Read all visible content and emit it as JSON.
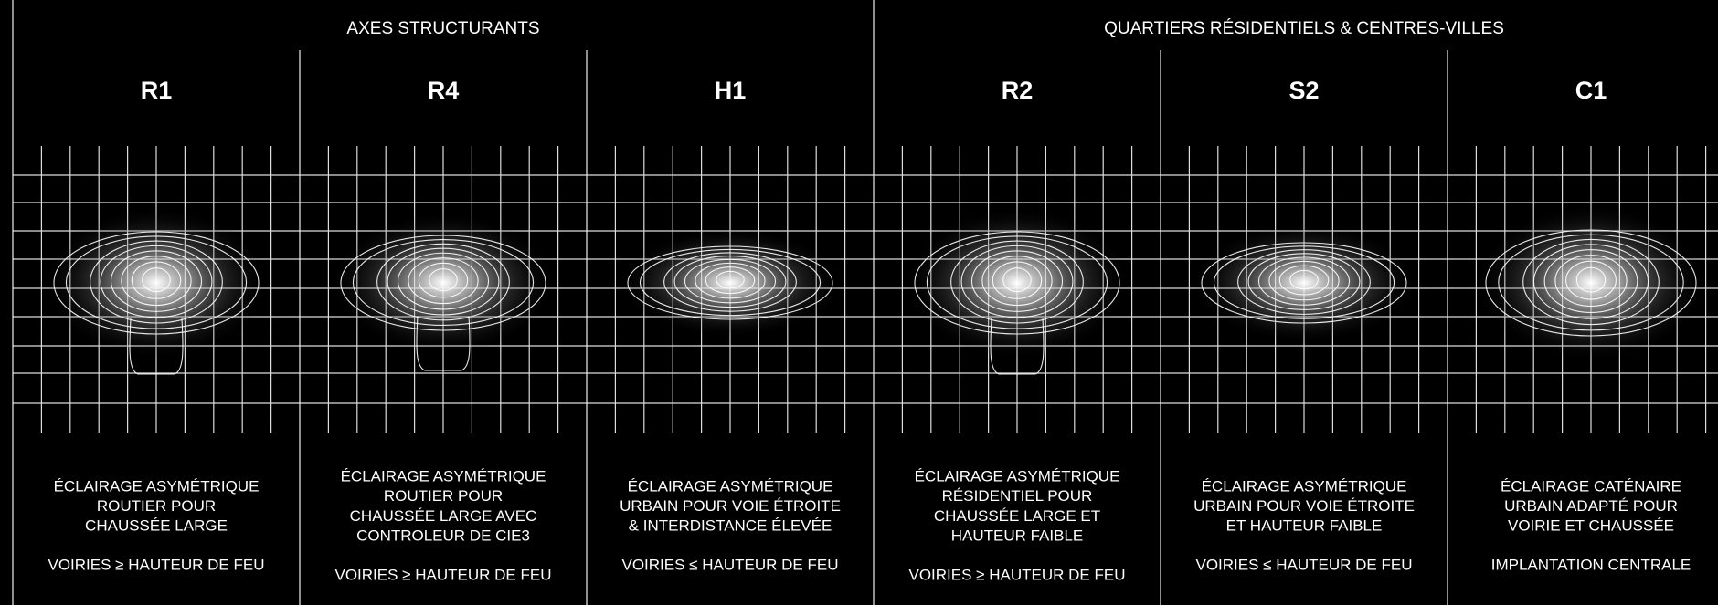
{
  "groups": [
    {
      "title": "AXES STRUCTURANTS",
      "columns": [
        {
          "title": "R1",
          "description": [
            "ÉCLAIRAGE ASYMÉTRIQUE",
            "ROUTIER POUR",
            "CHAUSSÉE LARGE"
          ],
          "note": "VOIRIES ≥ HAUTEUR DE FEU"
        },
        {
          "title": "R4",
          "description": [
            "ÉCLAIRAGE ASYMÉTRIQUE",
            "ROUTIER POUR",
            "CHAUSSÉE LARGE AVEC",
            "CONTROLEUR DE CIE3"
          ],
          "note": "VOIRIES ≥ HAUTEUR DE FEU"
        },
        {
          "title": "H1",
          "description": [
            "ÉCLAIRAGE ASYMÉTRIQUE",
            "URBAIN POUR VOIE ÉTROITE",
            "& INTERDISTANCE ÉLEVÉE"
          ],
          "note": "VOIRIES ≤ HAUTEUR DE FEU"
        }
      ]
    },
    {
      "title": "QUARTIERS RÉSIDENTIELS & CENTRES-VILLES",
      "columns": [
        {
          "title": "R2",
          "description": [
            "ÉCLAIRAGE ASYMÉTRIQUE",
            "RÉSIDENTIEL POUR",
            "CHAUSSÉE LARGE ET",
            "HAUTEUR FAIBLE"
          ],
          "note": "VOIRIES ≥ HAUTEUR DE FEU"
        },
        {
          "title": "S2",
          "description": [
            "ÉCLAIRAGE ASYMÉTRIQUE",
            "URBAIN POUR VOIE ÉTROITE",
            "ET HAUTEUR FAIBLE"
          ],
          "note": "VOIRIES ≤ HAUTEUR DE FEU"
        },
        {
          "title": "C1",
          "description": [
            "ÉCLAIRAGE CATÉNAIRE",
            "URBAIN ADAPTÉ POUR",
            "VOIRIE ET CHAUSSÉE"
          ],
          "note": "IMPLANTATION CENTRALE"
        }
      ]
    }
  ]
}
